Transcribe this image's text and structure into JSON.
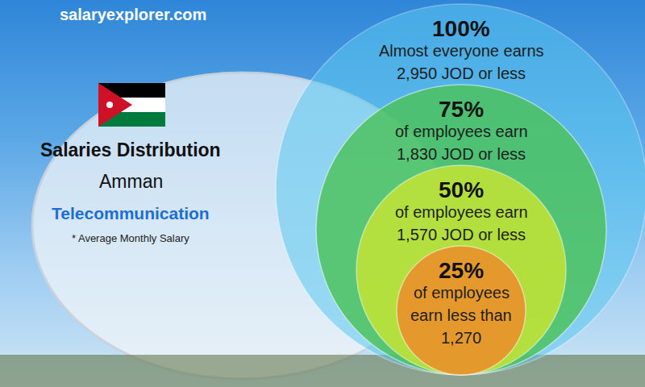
{
  "chart_data": {
    "type": "nested_circles",
    "source": "salaryexplorer.com",
    "title": "Salaries Distribution",
    "subtitle": "Amman",
    "annotations": [
      "Telecommunication",
      "* Average Monthly Salary"
    ],
    "values": [
      100,
      75,
      50,
      25
    ],
    "value_labels": [
      "100%",
      "75%",
      "50%",
      "25%"
    ],
    "descriptions": [
      [
        "Almost everyone earns"
      ],
      [
        "of employees earn"
      ],
      [
        "of employees earn"
      ],
      [
        "of employees",
        "earn less than"
      ]
    ],
    "salary_labels": [
      "2,950 JOD or less",
      "1,830 JOD or less",
      "1,570 JOD or less",
      "1,270"
    ],
    "colors": [
      "#5bc8f0",
      "#4cc35a",
      "#c8e632",
      "#f08a2a"
    ],
    "data_labels": true
  }
}
